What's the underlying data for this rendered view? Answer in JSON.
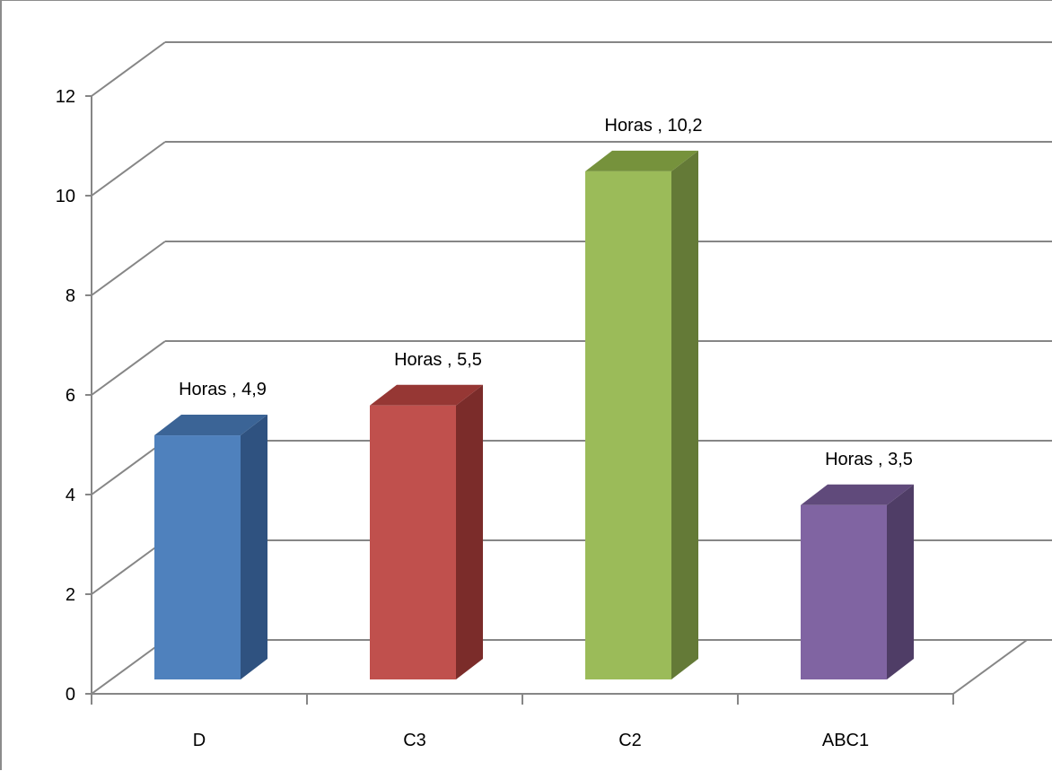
{
  "chart_data": {
    "type": "bar",
    "categories": [
      "D",
      "C3",
      "C2",
      "ABC1"
    ],
    "values": [
      4.9,
      5.5,
      10.2,
      3.5
    ],
    "data_labels": [
      "Horas , 4,9",
      "Horas , 5,5",
      "Horas , 10,2",
      "Horas , 3,5"
    ],
    "y_ticks": [
      "0",
      "2",
      "4",
      "6",
      "8",
      "10",
      "12"
    ],
    "ylim": [
      0,
      12
    ],
    "grid": true,
    "legend": "none",
    "style": "3d-column",
    "colors": {
      "D": {
        "front": "#4f81bd",
        "side": "#2f5280",
        "top": "#3b6496"
      },
      "C3": {
        "front": "#c0504d",
        "side": "#7b2c2a",
        "top": "#963734"
      },
      "C2": {
        "front": "#9bbb59",
        "side": "#647a37",
        "top": "#76923c"
      },
      "ABC1": {
        "front": "#8064a2",
        "side": "#4f3d66",
        "top": "#604a7b"
      }
    },
    "gridline_color": "#868686"
  }
}
